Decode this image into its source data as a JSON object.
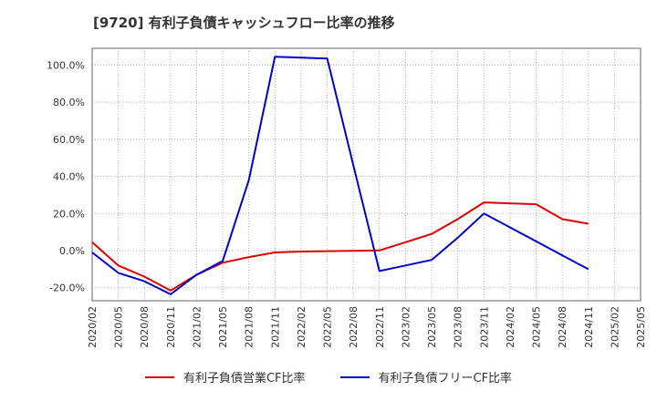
{
  "title": "[9720]  有利子負債キャッシュフロー比率の推移",
  "colors": {
    "series1": "#dd0000",
    "series2": "#0000cc",
    "grid": "#999999"
  },
  "chart_data": {
    "type": "line",
    "x": [
      "2020/02",
      "2020/05",
      "2020/08",
      "2020/11",
      "2021/02",
      "2021/05",
      "2021/08",
      "2021/11",
      "2022/02",
      "2022/05",
      "2022/08",
      "2022/11",
      "2023/02",
      "2023/05",
      "2023/08",
      "2023/11",
      "2024/02",
      "2024/05",
      "2024/08",
      "2024/11",
      "2025/02",
      "2025/05"
    ],
    "yticks": [
      "100.0%",
      "80.0%",
      "60.0%",
      "40.0%",
      "20.0%",
      "0.0%",
      "-20.0%"
    ],
    "ytick_values": [
      100,
      80,
      60,
      40,
      20,
      0,
      -20
    ],
    "ylim": [
      -27,
      109
    ],
    "grid": true,
    "legend_position": "bottom",
    "series": [
      {
        "name": "有利子負債営業CF比率",
        "color": "#dd0000",
        "values": [
          4.5,
          -8.0,
          -14.0,
          -21.5,
          -13.0,
          -6.5,
          -3.5,
          -1.0,
          -0.5,
          -0.3,
          -0.1,
          0.1,
          4.5,
          9.0,
          17.0,
          26.0,
          25.5,
          25.0,
          17.0,
          14.5,
          null,
          null
        ]
      },
      {
        "name": "有利子負債フリーCF比率",
        "color": "#0000cc",
        "values": [
          -1.0,
          -12.0,
          -16.5,
          -23.5,
          -13.0,
          -5.5,
          38.0,
          104.5,
          104.0,
          103.5,
          46.0,
          -11.0,
          -8.0,
          -5.0,
          7.0,
          20.0,
          12.5,
          5.0,
          -2.5,
          -10.0,
          null,
          null
        ]
      }
    ]
  }
}
